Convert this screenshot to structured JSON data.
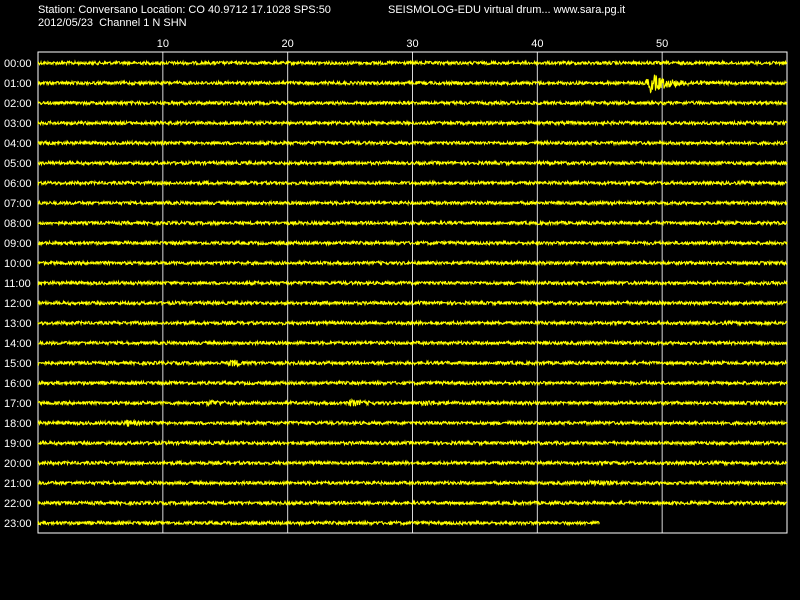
{
  "header": {
    "station_line": "Station: Conversano Location: CO 40.9712 17.1028 SPS:50",
    "date_line": "2012/05/23  Channel 1 N SHN",
    "title": "SEISMOLOG-EDU virtual drum... www.sara.pg.it"
  },
  "colors": {
    "background": "#000000",
    "trace": "#ffff00",
    "frame": "#ffffff",
    "grid": "#ffffff",
    "text": "#ffffff"
  },
  "chart_data": {
    "type": "line",
    "title": "",
    "xlabel": "",
    "ylabel": "",
    "x_ticks": [
      10,
      20,
      30,
      40,
      50
    ],
    "x_range": [
      0,
      60
    ],
    "grid": true,
    "rows": [
      {
        "label": "00:00",
        "end_minute": 60,
        "events": []
      },
      {
        "label": "01:00",
        "end_minute": 60,
        "events": [
          {
            "minute": 49,
            "strength": 9
          }
        ]
      },
      {
        "label": "02:00",
        "end_minute": 60,
        "events": []
      },
      {
        "label": "03:00",
        "end_minute": 60,
        "events": []
      },
      {
        "label": "04:00",
        "end_minute": 60,
        "events": []
      },
      {
        "label": "05:00",
        "end_minute": 60,
        "events": []
      },
      {
        "label": "06:00",
        "end_minute": 60,
        "events": []
      },
      {
        "label": "07:00",
        "end_minute": 60,
        "events": []
      },
      {
        "label": "08:00",
        "end_minute": 60,
        "events": []
      },
      {
        "label": "09:00",
        "end_minute": 60,
        "events": []
      },
      {
        "label": "10:00",
        "end_minute": 60,
        "events": []
      },
      {
        "label": "11:00",
        "end_minute": 60,
        "events": []
      },
      {
        "label": "12:00",
        "end_minute": 60,
        "events": []
      },
      {
        "label": "13:00",
        "end_minute": 60,
        "events": []
      },
      {
        "label": "14:00",
        "end_minute": 60,
        "events": []
      },
      {
        "label": "15:00",
        "end_minute": 60,
        "events": [
          {
            "minute": 15.5,
            "strength": 3
          }
        ]
      },
      {
        "label": "16:00",
        "end_minute": 60,
        "events": []
      },
      {
        "label": "17:00",
        "end_minute": 60,
        "events": [
          {
            "minute": 13.8,
            "strength": 2.5
          },
          {
            "minute": 25,
            "strength": 3
          },
          {
            "minute": 31,
            "strength": 2
          }
        ]
      },
      {
        "label": "18:00",
        "end_minute": 60,
        "events": [
          {
            "minute": 7,
            "strength": 3
          }
        ]
      },
      {
        "label": "19:00",
        "end_minute": 60,
        "events": []
      },
      {
        "label": "20:00",
        "end_minute": 60,
        "events": []
      },
      {
        "label": "21:00",
        "end_minute": 60,
        "events": [
          {
            "minute": 44.5,
            "strength": 3
          }
        ]
      },
      {
        "label": "22:00",
        "end_minute": 60,
        "events": []
      },
      {
        "label": "23:00",
        "end_minute": 45,
        "events": []
      }
    ]
  }
}
